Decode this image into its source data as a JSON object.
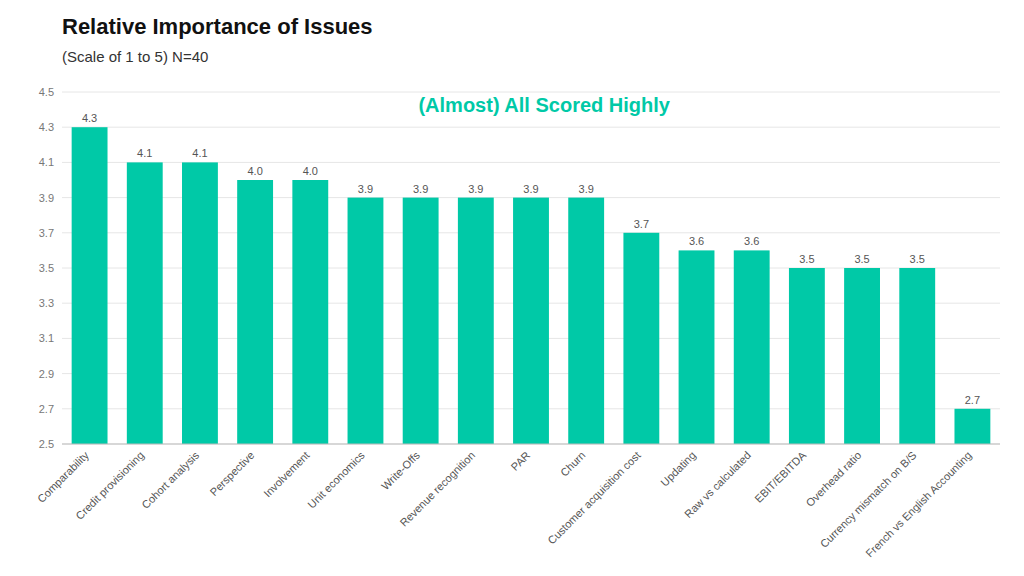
{
  "chart_data": {
    "type": "bar",
    "title": "Relative Importance of Issues",
    "subtitle": "(Scale of 1 to 5) N=40",
    "annotation": "(Almost) All Scored Highly",
    "categories": [
      "Comparability",
      "Credit provisioning",
      "Cohort analysis",
      "Perspective",
      "Involvement",
      "Unit economics",
      "Write-Offs",
      "Revenue recognition",
      "PAR",
      "Churn",
      "Customer acquisition cost",
      "Updating",
      "Raw vs calculated",
      "EBIT/EBITDA",
      "Overhead ratio",
      "Currency mismatch on B/S",
      "French vs English Accounting"
    ],
    "values": [
      4.3,
      4.1,
      4.1,
      4.0,
      4.0,
      3.9,
      3.9,
      3.9,
      3.9,
      3.9,
      3.7,
      3.6,
      3.6,
      3.5,
      3.5,
      3.5,
      2.7
    ],
    "value_labels": [
      "4.3",
      "4.1",
      "4.1",
      "4.0",
      "4.0",
      "3.9",
      "3.9",
      "3.9",
      "3.9",
      "3.9",
      "3.7",
      "3.6",
      "3.6",
      "3.5",
      "3.5",
      "3.5",
      "2.7"
    ],
    "data_labels": true,
    "color": "#00C9A7",
    "ylim": [
      2.5,
      4.5
    ],
    "yticks": [
      2.5,
      2.7,
      2.9,
      3.1,
      3.3,
      3.5,
      3.7,
      3.9,
      4.1,
      4.3,
      4.5
    ],
    "grid": true
  }
}
